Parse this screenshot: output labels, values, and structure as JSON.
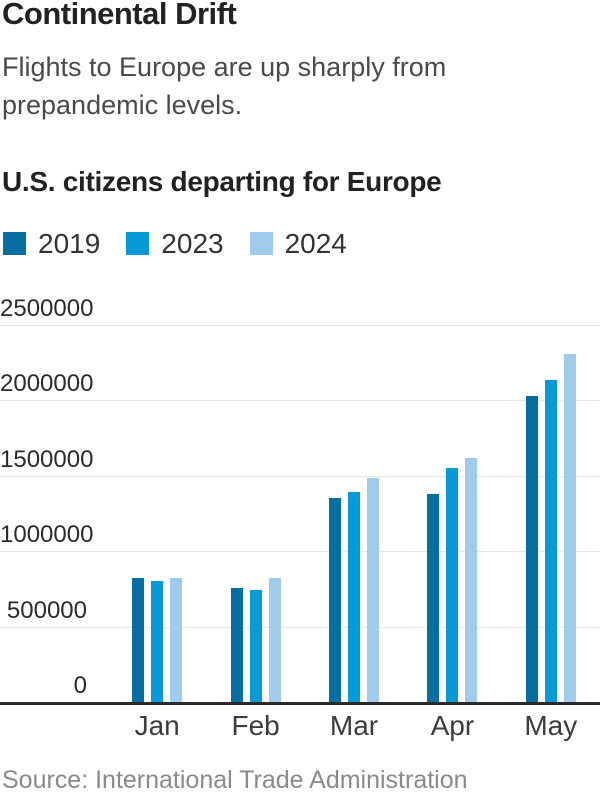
{
  "header": {
    "title": "Continental Drift",
    "subtitle_line1": "Flights to Europe are up sharply from",
    "subtitle_line2": "prepandemic levels.",
    "chart_heading": "U.S. citizens departing for Europe"
  },
  "source": "Source: International Trade Administration",
  "colors": {
    "series_2019": "#066ea0",
    "series_2023": "#0899d8",
    "series_2024": "#a0cbeb",
    "gridline": "#e6e6e6",
    "axis": "#2b2b2b"
  },
  "chart_data": {
    "type": "bar",
    "title": "Continental Drift",
    "subtitle": "Flights to Europe are up sharply from prepandemic levels.",
    "axis_heading": "U.S. citizens departing for Europe",
    "categories": [
      "Jan",
      "Feb",
      "Mar",
      "Apr",
      "May"
    ],
    "series": [
      {
        "name": "2019",
        "color": "#066ea0",
        "values": [
          820000,
          755000,
          1355000,
          1380000,
          2030000
        ]
      },
      {
        "name": "2023",
        "color": "#0899d8",
        "values": [
          800000,
          745000,
          1390000,
          1550000,
          2135000
        ]
      },
      {
        "name": "2024",
        "color": "#a0cbeb",
        "values": [
          825000,
          820000,
          1485000,
          1620000,
          2310000
        ]
      }
    ],
    "xlabel": "",
    "ylabel": "",
    "ylim": [
      0,
      2500000
    ],
    "yticks": [
      0,
      500000,
      1000000,
      1500000,
      2000000,
      2500000
    ],
    "ytick_labels": [
      "0",
      "500000",
      "1000000",
      "1500000",
      "2000000",
      "2500000"
    ],
    "grid": true,
    "legend_position": "top",
    "source": "Source: International Trade Administration"
  }
}
